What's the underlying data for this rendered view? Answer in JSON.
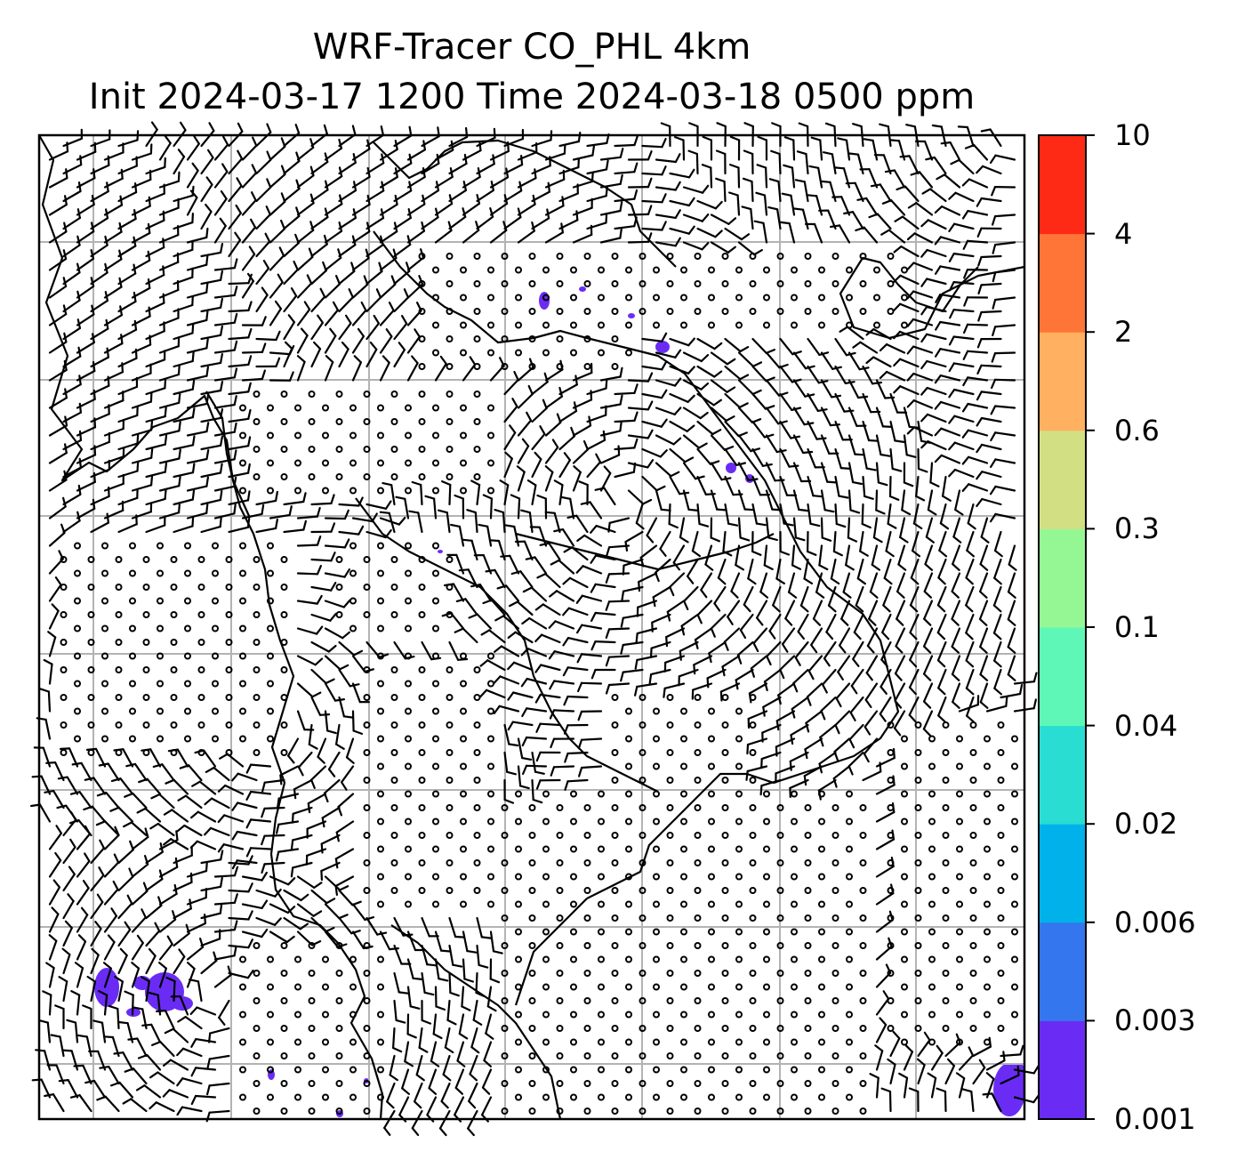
{
  "title": {
    "line1": "WRF-Tracer CO_PHL 4km",
    "line2": "Init 2024-03-17 1200 Time 2024-03-18 0500 ppm"
  },
  "colorbar": {
    "ticks": [
      "0.001",
      "0.003",
      "0.006",
      "0.02",
      "0.04",
      "0.1",
      "0.3",
      "0.6",
      "2",
      "4",
      "10"
    ],
    "colors": [
      "#6a2cf5",
      "#3476ee",
      "#00b1ea",
      "#29ddd3",
      "#5ff7b7",
      "#95f794",
      "#d2e083",
      "#ffb060",
      "#ff7437",
      "#ff2a16"
    ]
  },
  "map_style": {
    "background": "#ffffff",
    "gridline_color": "#b3b3b3",
    "coastline_color": "#000000",
    "tracer_patch_color": "#6a2cf5"
  }
}
